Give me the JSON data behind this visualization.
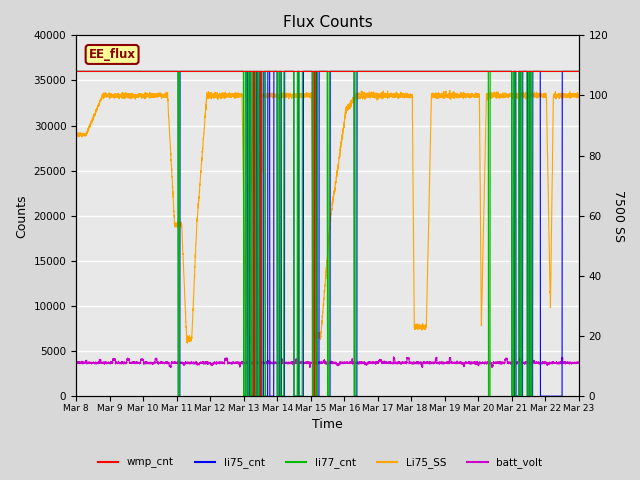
{
  "title": "Flux Counts",
  "xlabel": "Time",
  "ylabel_left": "Counts",
  "ylabel_right": "7500 SS",
  "annotation_text": "EE_flux",
  "annotation_color": "#8B0000",
  "annotation_bg": "#FFFF99",
  "ylim_left": [
    0,
    40000
  ],
  "ylim_right": [
    0,
    120
  ],
  "left_yticks": [
    0,
    5000,
    10000,
    15000,
    20000,
    25000,
    30000,
    35000,
    40000
  ],
  "right_yticks": [
    0,
    20,
    40,
    60,
    80,
    100,
    120
  ],
  "xtick_labels": [
    "Mar 8",
    "Mar 9",
    "Mar 10",
    "Mar 11",
    "Mar 12",
    "Mar 13",
    "Mar 14",
    "Mar 15",
    "Mar 16",
    "Mar 17",
    "Mar 18",
    "Mar 19",
    "Mar 20",
    "Mar 21",
    "Mar 22",
    "Mar 23"
  ],
  "grid_color": "#ffffff",
  "bg_color": "#e8e8e8",
  "colors": {
    "wmp_cnt": "#ff0000",
    "li75_cnt": "#0000ff",
    "li77_cnt": "#00bb00",
    "Li75_SS": "#ffa500",
    "batt_volt": "#cc00cc"
  },
  "legend_labels": [
    "wmp_cnt",
    "li75_cnt",
    "li77_cnt",
    "Li75_SS",
    "batt_volt"
  ]
}
